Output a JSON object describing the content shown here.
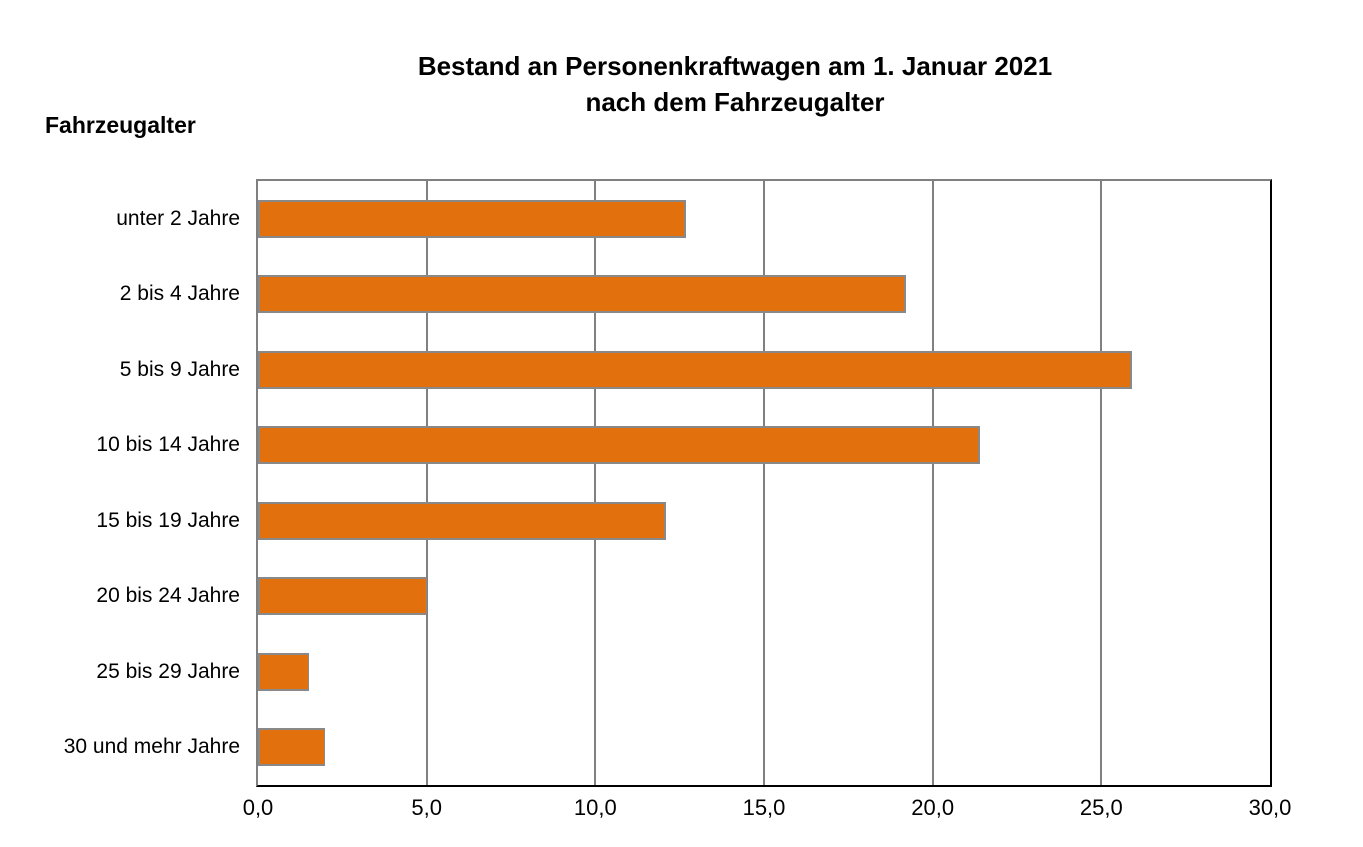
{
  "title": {
    "line1": "Bestand an Personenkraftwagen am 1. Januar 2021",
    "line2": "nach dem Fahrzeugalter"
  },
  "chart_data": {
    "type": "bar",
    "orientation": "horizontal",
    "title": "Bestand an Personenkraftwagen am 1. Januar 2021 nach dem Fahrzeugalter",
    "ylabel": "Fahrzeugalter",
    "xlabel": "",
    "categories": [
      "unter 2 Jahre",
      "2 bis 4 Jahre",
      "5 bis 9 Jahre",
      "10 bis 14 Jahre",
      "15 bis 19 Jahre",
      "20 bis 24 Jahre",
      "25 bis 29 Jahre",
      "30 und mehr Jahre"
    ],
    "values": [
      12.7,
      19.2,
      25.9,
      21.4,
      12.1,
      5.0,
      1.5,
      2.0
    ],
    "xlim": [
      0,
      30
    ],
    "xtick_step": 5,
    "xtick_labels": [
      "0,0",
      "5,0",
      "10,0",
      "15,0",
      "20,0",
      "25,0",
      "30,0"
    ],
    "grid": true,
    "legend": "none",
    "colors": {
      "bar_fill": "#E2700C",
      "bar_border": "#898989",
      "gridline": "#808080",
      "axis_line": "#000000",
      "plot_border_gray": "#808080",
      "text": "#000000",
      "background": "#ffffff"
    }
  }
}
